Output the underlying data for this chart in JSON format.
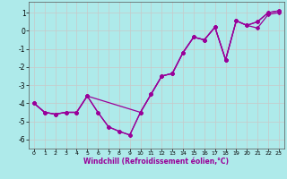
{
  "title": "",
  "xlabel": "Windchill (Refroidissement éolien,°C)",
  "ylabel": "",
  "bg_color": "#aeeaea",
  "grid_color": "#c8c8c8",
  "line_color": "#990099",
  "xlim": [
    -0.5,
    23.5
  ],
  "ylim": [
    -6.5,
    1.6
  ],
  "yticks": [
    1,
    0,
    -1,
    -2,
    -3,
    -4,
    -5,
    -6
  ],
  "xticks": [
    0,
    1,
    2,
    3,
    4,
    5,
    6,
    7,
    8,
    9,
    10,
    11,
    12,
    13,
    14,
    15,
    16,
    17,
    18,
    19,
    20,
    21,
    22,
    23
  ],
  "series1_x": [
    0,
    1,
    2,
    3,
    4,
    5,
    6,
    7,
    8,
    9,
    10,
    11,
    12,
    13,
    14,
    15,
    16,
    17,
    18,
    19,
    20,
    21,
    22,
    23
  ],
  "series1_y": [
    -4.0,
    -4.5,
    -4.6,
    -4.5,
    -4.5,
    -3.6,
    -4.5,
    -5.3,
    -5.55,
    -5.75,
    -4.5,
    -3.5,
    -2.5,
    -2.35,
    -1.2,
    -0.35,
    -0.5,
    0.2,
    -1.6,
    0.55,
    0.3,
    0.15,
    0.9,
    1.0
  ],
  "series2_x": [
    0,
    1,
    2,
    3,
    4,
    5,
    6,
    7,
    8,
    9,
    10,
    11,
    12,
    13,
    14,
    15,
    16,
    17,
    18,
    19,
    20,
    21,
    22,
    23
  ],
  "series2_y": [
    -4.0,
    -4.5,
    -4.6,
    -4.5,
    -4.5,
    -3.6,
    -4.5,
    -5.3,
    -5.55,
    -5.75,
    -4.5,
    -3.5,
    -2.5,
    -2.35,
    -1.2,
    -0.35,
    -0.5,
    0.2,
    -1.6,
    0.55,
    0.3,
    0.5,
    1.0,
    1.1
  ],
  "series3_x": [
    0,
    1,
    2,
    3,
    4,
    5,
    10,
    11,
    12,
    13,
    14,
    15,
    16,
    17,
    18,
    19,
    20,
    21,
    22,
    23
  ],
  "series3_y": [
    -4.0,
    -4.5,
    -4.6,
    -4.5,
    -4.5,
    -3.6,
    -4.5,
    -3.5,
    -2.5,
    -2.35,
    -1.2,
    -0.35,
    -0.5,
    0.2,
    -1.6,
    0.55,
    0.3,
    0.5,
    1.0,
    1.1
  ]
}
